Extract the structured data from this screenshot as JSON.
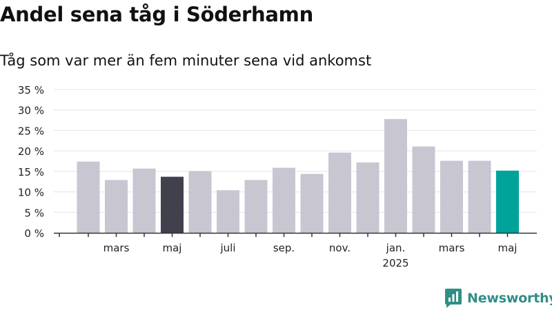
{
  "chart_data": {
    "type": "bar",
    "title": "Andel sena tåg i Söderhamn",
    "subtitle": "Tåg som var mer än fem minuter sena vid ankomst",
    "xlabel": "",
    "ylabel": "",
    "ylim": [
      0,
      35
    ],
    "y_ticks": [
      "0 %",
      "5 %",
      "10 %",
      "15 %",
      "20 %",
      "25 %",
      "30 %",
      "35 %"
    ],
    "grid": true,
    "legend": "none",
    "categories": [
      "2024-02",
      "2024-03",
      "2024-04",
      "2024-05",
      "2024-06",
      "2024-07",
      "2024-08",
      "2024-09",
      "2024-10",
      "2024-11",
      "2024-12",
      "2025-01",
      "2025-02",
      "2025-03",
      "2025-04",
      "2025-05"
    ],
    "values": [
      17.4,
      12.9,
      15.7,
      13.7,
      15.1,
      10.4,
      12.9,
      15.9,
      14.4,
      19.6,
      17.2,
      27.8,
      21.1,
      17.6,
      17.6,
      15.2
    ],
    "x_tick_labels": [
      {
        "category": "2024-03",
        "label": "mars"
      },
      {
        "category": "2024-05",
        "label": "maj"
      },
      {
        "category": "2024-07",
        "label": "juli"
      },
      {
        "category": "2024-09",
        "label": "sep."
      },
      {
        "category": "2024-11",
        "label": "nov."
      },
      {
        "category": "2025-01",
        "label": "jan.",
        "sublabel": "2025"
      },
      {
        "category": "2025-03",
        "label": "mars"
      },
      {
        "category": "2025-05",
        "label": "maj"
      }
    ],
    "colors": {
      "default": "#c8c7d1",
      "highlight_previous": "#41404d",
      "highlight_current": "#00a399",
      "grid": "#e3e3e3",
      "axis": "#333333"
    },
    "highlight": {
      "2024-05": "highlight_previous",
      "2025-05": "highlight_current"
    }
  },
  "brand": {
    "name": "Newsworthy",
    "icon": "bar-chart-speech-bubble-icon",
    "color": "#2f8f87"
  }
}
